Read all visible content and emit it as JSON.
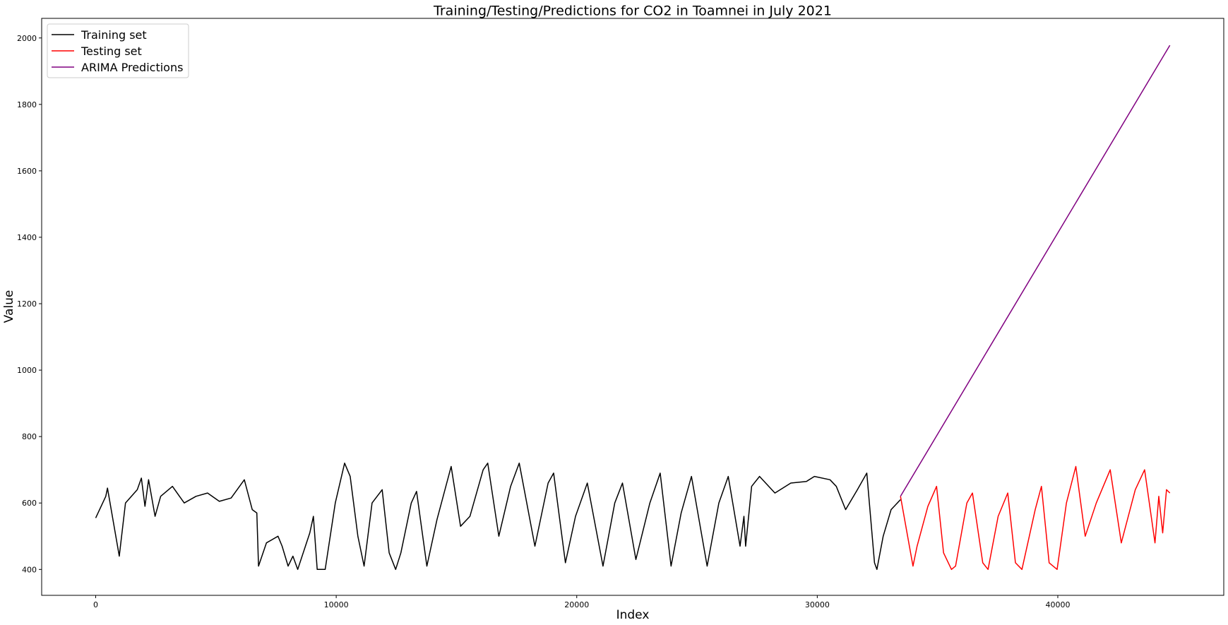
{
  "chart_data": {
    "type": "line",
    "title": "Training/Testing/Predictions for CO2 in Toamnei in July 2021",
    "x_label": "Index",
    "y_label": "Value",
    "xlim": [
      -2246,
      46900
    ],
    "ylim": [
      322,
      2059
    ],
    "xticks": [
      0,
      10000,
      20000,
      30000,
      40000
    ],
    "yticks": [
      400,
      600,
      800,
      1000,
      1200,
      1400,
      1600,
      1800,
      2000
    ],
    "grid": false,
    "legend": "upper left",
    "series": [
      {
        "name": "Training set",
        "color": "#000000",
        "x": [
          0,
          420,
          490,
          980,
          1240,
          1730,
          1900,
          2050,
          2200,
          2470,
          2700,
          3190,
          3680,
          4170,
          4650,
          5140,
          5630,
          6180,
          6510,
          6700,
          6770,
          7100,
          7580,
          7750,
          8000,
          8200,
          8400,
          8720,
          8900,
          9050,
          9210,
          9540,
          9960,
          10350,
          10580,
          10900,
          11160,
          11490,
          11910,
          12200,
          12470,
          12690,
          13120,
          13340,
          13770,
          14190,
          14780,
          15170,
          15560,
          16110,
          16300,
          16760,
          17250,
          17610,
          18260,
          18810,
          19040,
          19530,
          19950,
          20440,
          21090,
          21580,
          21900,
          22460,
          23040,
          23470,
          23920,
          24340,
          24770,
          25420,
          25910,
          26300,
          26790,
          26950,
          27020,
          27270,
          27600,
          28240,
          28900,
          29550,
          29880,
          30530,
          30790,
          31180,
          31670,
          32060,
          32380,
          32480,
          32740,
          33070,
          33460
        ],
        "values": [
          555,
          620,
          645,
          440,
          600,
          640,
          675,
          590,
          670,
          560,
          620,
          650,
          600,
          620,
          630,
          605,
          615,
          670,
          580,
          570,
          410,
          480,
          500,
          470,
          410,
          440,
          400,
          470,
          510,
          560,
          400,
          400,
          600,
          720,
          680,
          500,
          410,
          600,
          640,
          450,
          400,
          450,
          600,
          635,
          410,
          550,
          710,
          530,
          560,
          700,
          720,
          500,
          650,
          720,
          470,
          660,
          690,
          420,
          560,
          660,
          410,
          600,
          660,
          430,
          600,
          690,
          410,
          570,
          680,
          410,
          600,
          680,
          470,
          560,
          470,
          650,
          680,
          630,
          660,
          665,
          680,
          670,
          650,
          580,
          640,
          690,
          420,
          400,
          500,
          580,
          610
        ]
      },
      {
        "name": "Testing set",
        "color": "#ff0000",
        "x": [
          33460,
          33880,
          33980,
          34150,
          34600,
          34960,
          35250,
          35580,
          35750,
          36220,
          36450,
          36880,
          37100,
          37520,
          37920,
          38240,
          38510,
          39060,
          39320,
          39640,
          39970,
          40360,
          40750,
          41140,
          41600,
          42180,
          42640,
          43220,
          43610,
          44040,
          44200,
          44360,
          44520,
          44660
        ],
        "values": [
          620,
          450,
          410,
          470,
          590,
          650,
          450,
          400,
          410,
          600,
          630,
          420,
          400,
          560,
          630,
          420,
          400,
          580,
          650,
          420,
          400,
          600,
          710,
          500,
          600,
          700,
          480,
          640,
          700,
          480,
          620,
          510,
          640,
          630
        ]
      },
      {
        "name": "ARIMA Predictions",
        "color": "#800080",
        "x": [
          33460,
          44660
        ],
        "values": [
          620,
          1978
        ]
      }
    ]
  }
}
